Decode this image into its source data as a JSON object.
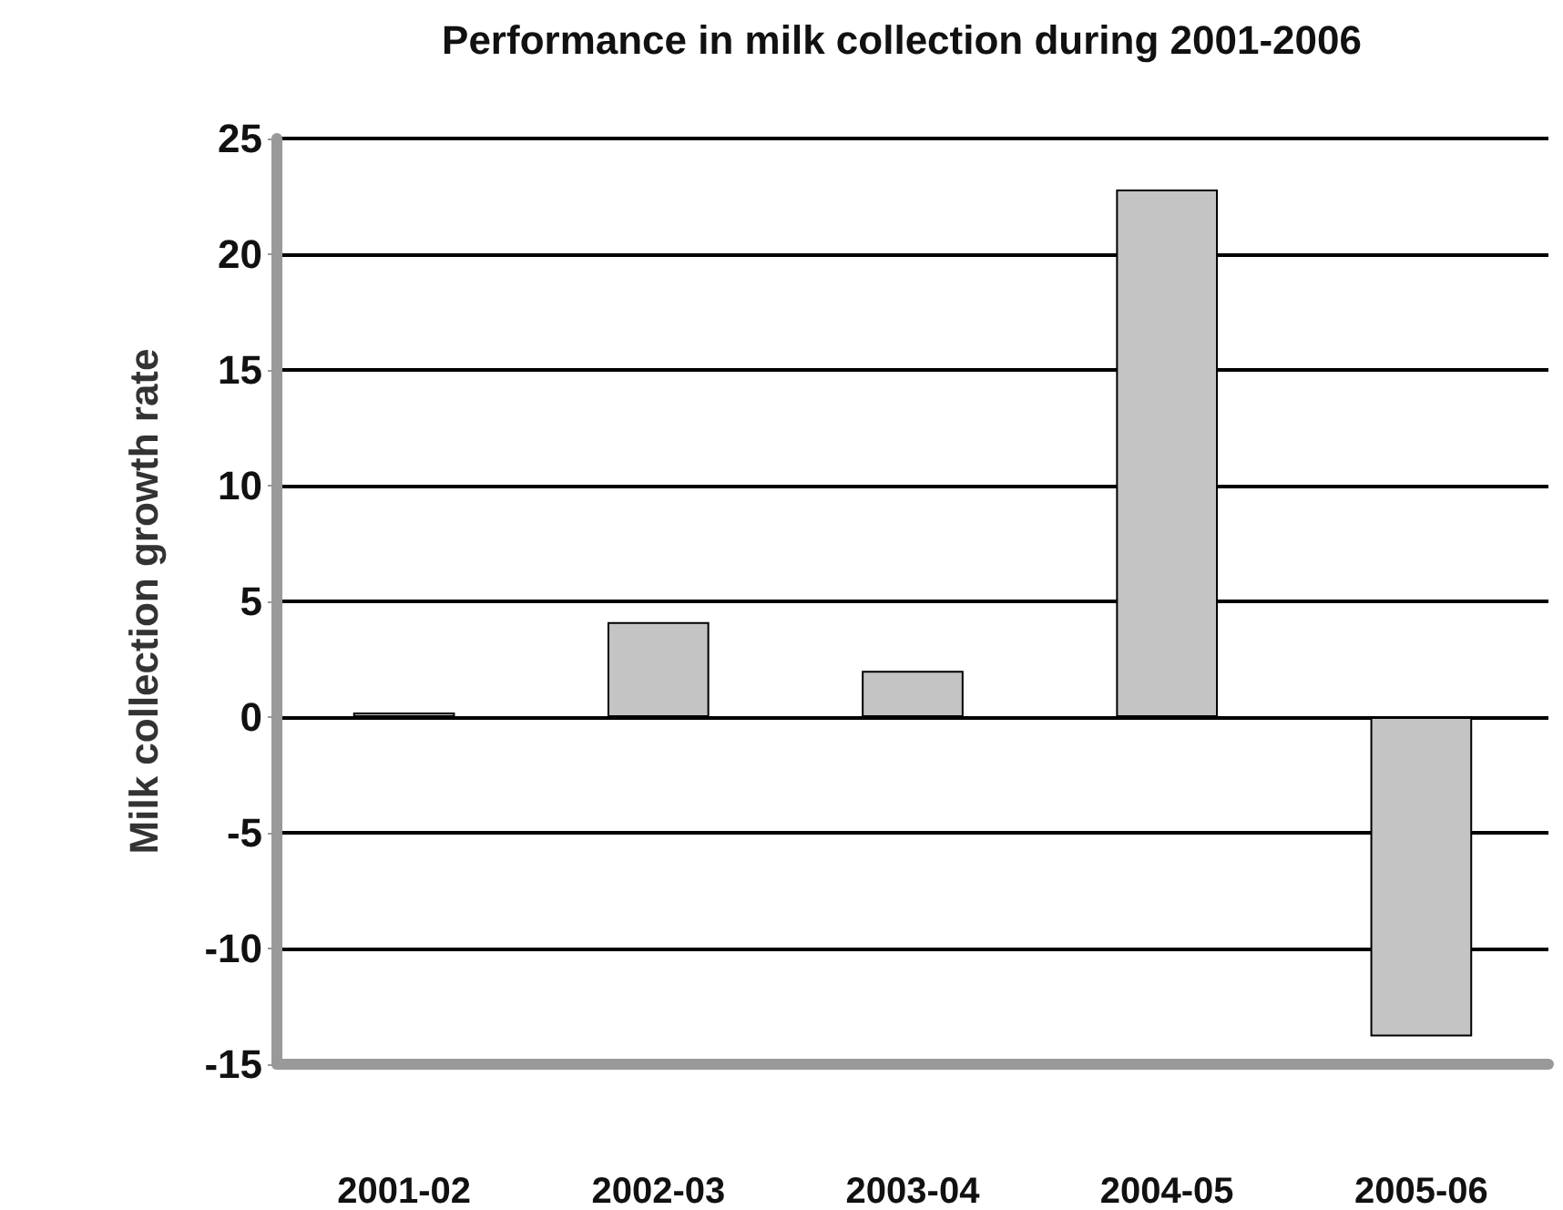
{
  "chart_data": {
    "type": "bar",
    "title": "Performance in milk collection during 2001-2006",
    "ylabel": "Milk collection growth rate",
    "categories": [
      "2001-02",
      "2002-03",
      "2003-04",
      "2004-05",
      "2005-06"
    ],
    "values": [
      0.2,
      4.1,
      2,
      22.8,
      -13.8
    ],
    "color": "#c4c4c4",
    "ylim": [
      -15,
      25
    ],
    "yticks": [
      -15,
      -10,
      -5,
      0,
      5,
      10,
      15,
      20,
      25
    ],
    "grid": "y"
  }
}
